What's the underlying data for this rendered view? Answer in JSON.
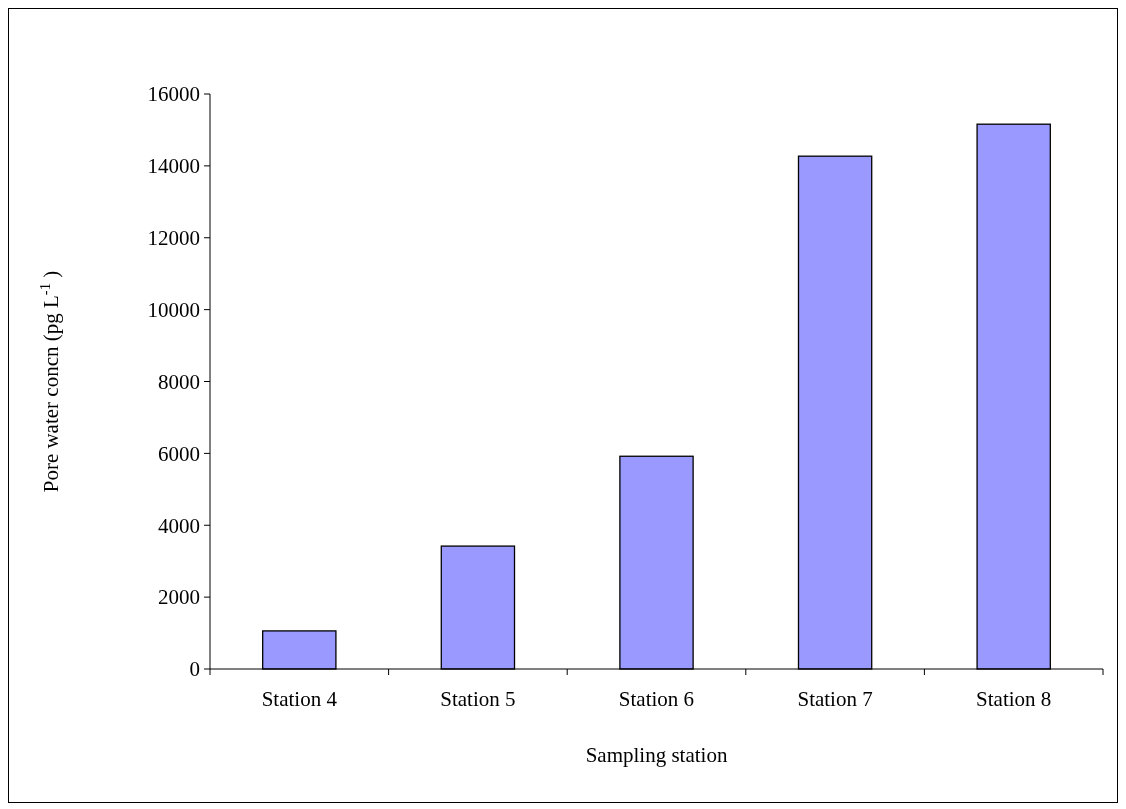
{
  "chart_data": {
    "type": "bar",
    "xlabel": "Sampling station",
    "ylabel": "Pore water concn (pg L$^{-1}$)",
    "categories": [
      "Station 4",
      "Station 5",
      "Station 6",
      "Station 7",
      "Station 8"
    ],
    "values": [
      1060,
      3420,
      5920,
      14270,
      15160
    ],
    "color": "#9999ff",
    "ylim": [
      0,
      16000
    ],
    "yticks": [
      0,
      2000,
      4000,
      6000,
      8000,
      10000,
      12000,
      14000,
      16000
    ],
    "grid": false
  }
}
